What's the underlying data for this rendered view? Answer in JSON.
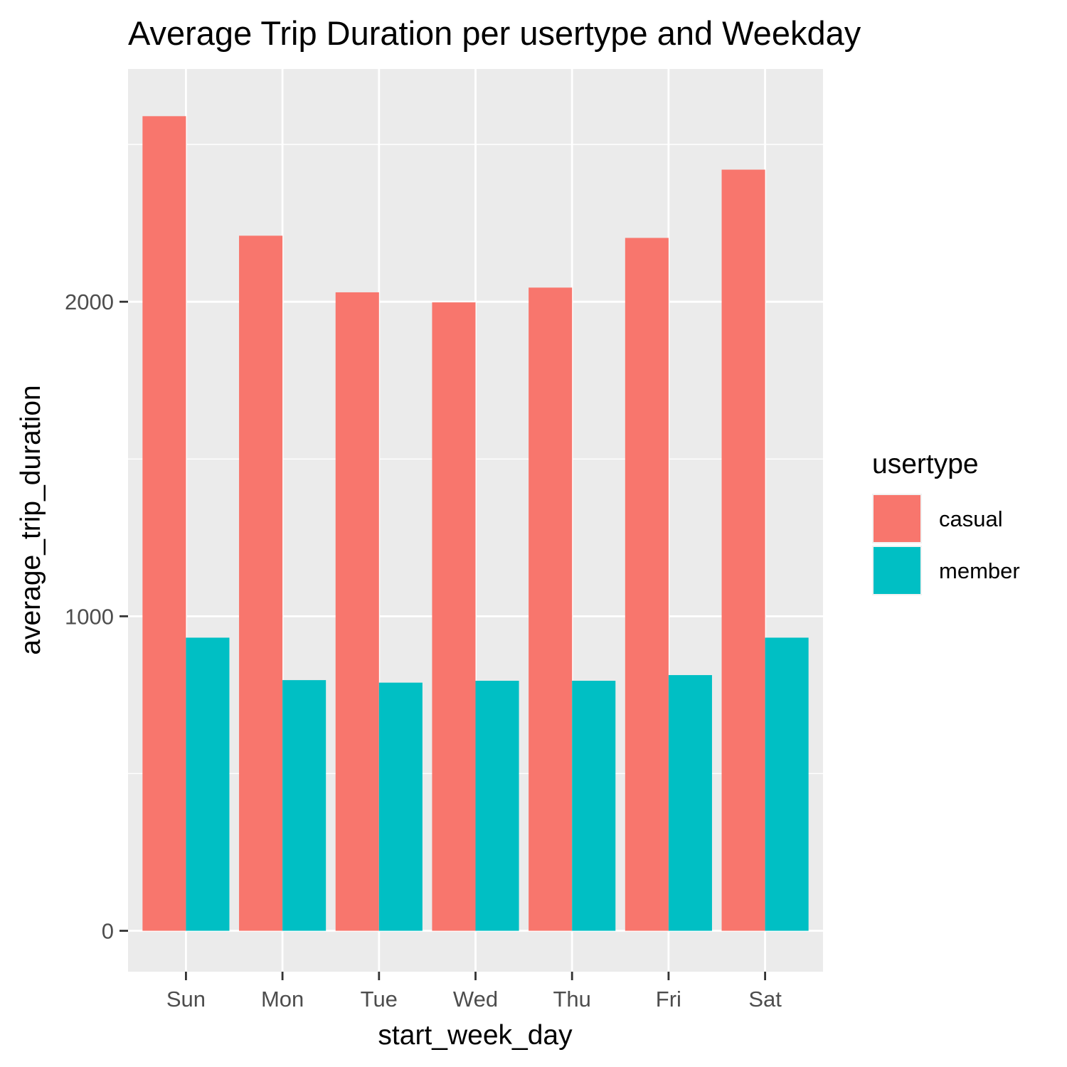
{
  "chart_data": {
    "type": "bar",
    "title": "Average Trip Duration per usertype and Weekday",
    "xlabel": "start_week_day",
    "ylabel": "average_trip_duration",
    "categories": [
      "Sun",
      "Mon",
      "Tue",
      "Wed",
      "Thu",
      "Fri",
      "Sat"
    ],
    "series": [
      {
        "name": "casual",
        "color": "#F8766D",
        "values": [
          2590,
          2210,
          2030,
          1998,
          2045,
          2203,
          2420
        ]
      },
      {
        "name": "member",
        "color": "#00BFC4",
        "values": [
          932,
          797,
          789,
          795,
          795,
          813,
          932
        ]
      }
    ],
    "ylim": [
      -130,
      2740
    ],
    "yticks": [
      0,
      1000,
      2000
    ],
    "yticks_minor": [
      500,
      1500,
      2500
    ],
    "grid": true,
    "legend": {
      "title": "usertype",
      "position": "right"
    }
  }
}
